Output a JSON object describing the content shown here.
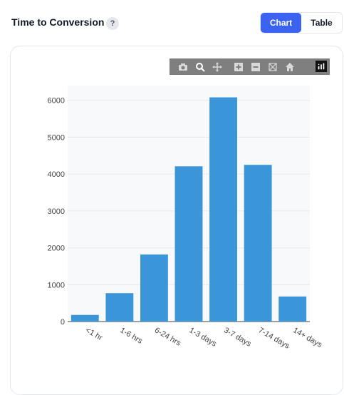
{
  "header": {
    "title": "Time to Conversion",
    "help_label": "?",
    "toggle": {
      "chart_label": "Chart",
      "table_label": "Table",
      "selected": "Chart"
    }
  },
  "modebar": {
    "buttons": [
      "camera-icon",
      "zoom-icon",
      "pan-icon",
      "zoom-in-icon",
      "zoom-out-icon",
      "autoscale-icon",
      "reset-axes-icon"
    ],
    "logo": "plotly-logo-icon"
  },
  "colors": {
    "accent": "#3b62f0",
    "bar": "#3a96d8",
    "plot_bg": "#f8f9fb"
  },
  "chart_data": {
    "type": "bar",
    "categories": [
      "<1 hr",
      "1-6 hrs",
      "6-24 hrs",
      "1-3 days",
      "3-7 days",
      "7-14 days",
      "14+ days"
    ],
    "values": [
      180,
      770,
      1820,
      4210,
      6080,
      4250,
      680
    ],
    "ylim": [
      0,
      6400
    ],
    "yticks": [
      "0",
      "1000",
      "2000",
      "3000",
      "4000",
      "5000",
      "6000"
    ],
    "grid": true,
    "title": "",
    "xlabel": "",
    "ylabel": ""
  }
}
